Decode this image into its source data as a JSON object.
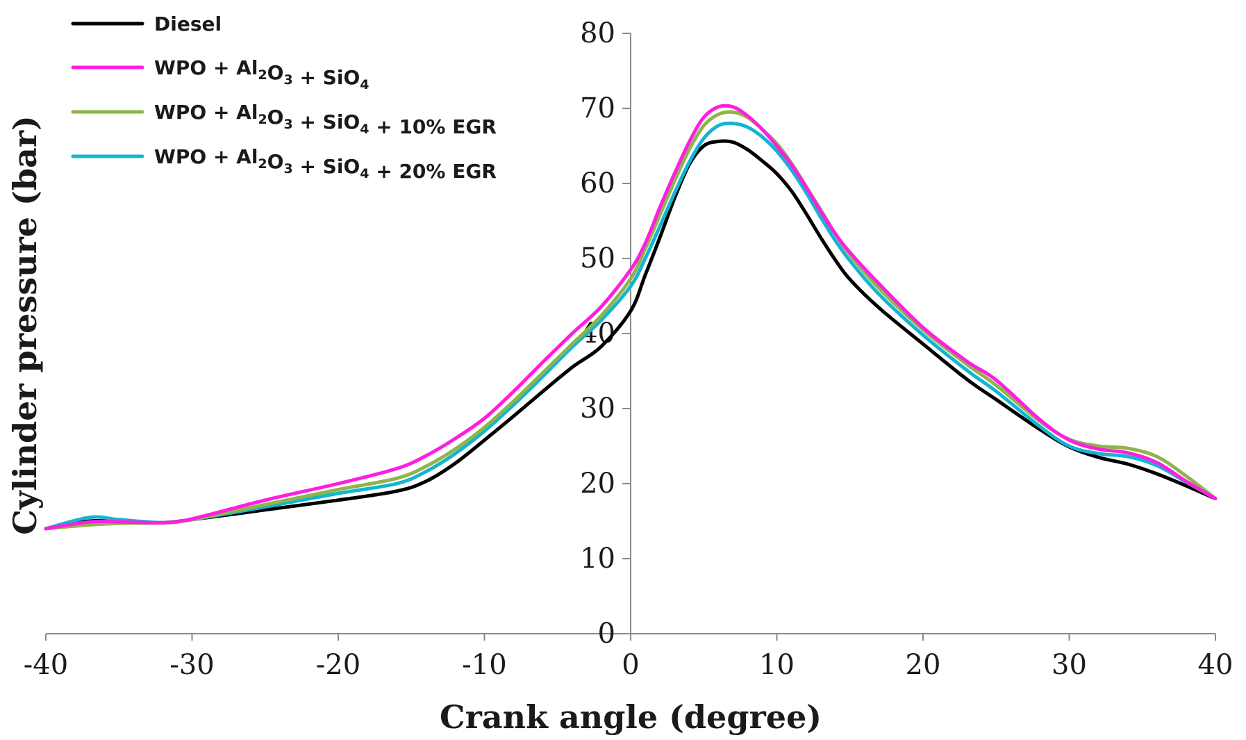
{
  "chart_data": {
    "type": "line",
    "title": "",
    "xlabel": "Crank angle (degree)",
    "ylabel": "Cylinder pressure (bar)",
    "xlim": [
      -40,
      40
    ],
    "ylim": [
      0,
      80
    ],
    "xticks": [
      -40,
      -30,
      -20,
      -10,
      0,
      10,
      20,
      30,
      40
    ],
    "yticks": [
      0,
      10,
      20,
      30,
      40,
      50,
      60,
      70,
      80
    ],
    "grid": false,
    "legend_position": "top-left",
    "series": [
      {
        "name": "Diesel",
        "label_parts": [
          {
            "t": "Diesel"
          }
        ],
        "color": "#000000",
        "x": [
          -40,
          -37,
          -35,
          -32,
          -30,
          -25,
          -20,
          -16,
          -14,
          -12,
          -10,
          -8,
          -6,
          -4,
          -2,
          0,
          1,
          2,
          3,
          4,
          5,
          6,
          7,
          8,
          9,
          10,
          11,
          12,
          13,
          14,
          15,
          17,
          20,
          23,
          25,
          28,
          30,
          32,
          34,
          36,
          38,
          40
        ],
        "y": [
          14,
          15,
          14.9,
          14.8,
          15.2,
          16.5,
          17.8,
          19,
          20.3,
          22.7,
          25.8,
          29,
          32.3,
          35.5,
          38.3,
          43,
          47.8,
          52.8,
          58,
          62.5,
          65,
          65.6,
          65.5,
          64.5,
          63,
          61.3,
          59,
          56,
          52.8,
          49.8,
          47.2,
          43.4,
          38.6,
          33.9,
          31.2,
          27.2,
          24.9,
          23.5,
          22.6,
          21.3,
          19.7,
          18
        ]
      },
      {
        "name": "WPO + Al2O3 + SiO4",
        "label_parts": [
          {
            "t": "WPO + Al"
          },
          {
            "t": "2",
            "sub": true
          },
          {
            "t": "O"
          },
          {
            "t": "3",
            "sub": true
          },
          {
            "t": " + SiO"
          },
          {
            "t": "4",
            "sub": true
          }
        ],
        "color": "#FF1EE0",
        "x": [
          -40,
          -37,
          -35,
          -32,
          -30,
          -25,
          -20,
          -16,
          -14,
          -12,
          -10,
          -8,
          -6,
          -4,
          -2,
          0,
          1,
          2,
          3,
          4,
          5,
          6,
          7,
          8,
          9,
          10,
          11,
          12,
          13,
          14,
          15,
          17,
          20,
          23,
          25,
          28,
          30,
          32,
          34,
          36,
          38,
          40
        ],
        "y": [
          14,
          14.9,
          14.9,
          14.8,
          15.3,
          17.8,
          20,
          22,
          23.7,
          26,
          28.7,
          32.3,
          36.2,
          40,
          43.6,
          48.5,
          52,
          56.8,
          61.3,
          65.5,
          68.8,
          70.2,
          70.2,
          69,
          67.2,
          65,
          62.5,
          59.5,
          56.3,
          53.3,
          50.8,
          46.6,
          40.8,
          36.3,
          33.8,
          28.5,
          25.8,
          24.6,
          24.1,
          22.8,
          20.3,
          18
        ]
      },
      {
        "name": "WPO + Al2O3 + SiO4 + 10% EGR",
        "label_parts": [
          {
            "t": "WPO + Al"
          },
          {
            "t": "2",
            "sub": true
          },
          {
            "t": "O"
          },
          {
            "t": "3",
            "sub": true
          },
          {
            "t": " + SiO"
          },
          {
            "t": "4",
            "sub": true
          },
          {
            "t": " + 10% EGR"
          }
        ],
        "color": "#8DB54A",
        "x": [
          -40,
          -37,
          -35,
          -32,
          -30,
          -25,
          -20,
          -16,
          -14,
          -12,
          -10,
          -8,
          -6,
          -4,
          -2,
          0,
          1,
          2,
          3,
          4,
          5,
          6,
          7,
          8,
          9,
          10,
          11,
          12,
          13,
          14,
          15,
          17,
          20,
          23,
          25,
          28,
          30,
          32,
          34,
          36,
          38,
          40
        ],
        "y": [
          14,
          14.5,
          14.7,
          14.8,
          15.2,
          17.2,
          19.2,
          20.7,
          22.3,
          24.6,
          27.5,
          31,
          34.8,
          38.6,
          42.4,
          47.3,
          51.3,
          55.8,
          60.3,
          64.5,
          67.7,
          69.2,
          69.5,
          68.8,
          67.2,
          65.3,
          62.7,
          59.6,
          56.5,
          53.3,
          50.5,
          46,
          40.5,
          35.9,
          33.1,
          28.3,
          25.9,
          25,
          24.7,
          23.6,
          21,
          18
        ]
      },
      {
        "name": "WPO + Al2O3 + SiO4 + 20% EGR",
        "label_parts": [
          {
            "t": "WPO + Al"
          },
          {
            "t": "2",
            "sub": true
          },
          {
            "t": "O"
          },
          {
            "t": "3",
            "sub": true
          },
          {
            "t": " + SiO"
          },
          {
            "t": "4",
            "sub": true
          },
          {
            "t": " + 20% EGR"
          }
        ],
        "color": "#13B5D1",
        "x": [
          -40,
          -37,
          -35,
          -32,
          -30,
          -25,
          -20,
          -16,
          -14,
          -12,
          -10,
          -8,
          -6,
          -4,
          -2,
          0,
          1,
          2,
          3,
          4,
          5,
          6,
          7,
          8,
          9,
          10,
          11,
          12,
          13,
          14,
          15,
          17,
          20,
          23,
          25,
          28,
          30,
          32,
          34,
          36,
          38,
          40
        ],
        "y": [
          14,
          15.5,
          15.2,
          14.8,
          15.2,
          16.9,
          18.7,
          20,
          21.6,
          24,
          27,
          30.5,
          34.3,
          38.2,
          41.8,
          46.3,
          50,
          54.3,
          58.7,
          62.8,
          66,
          67.7,
          68,
          67.5,
          66.2,
          64.3,
          61.8,
          58.8,
          55.5,
          52.4,
          49.7,
          45.2,
          39.8,
          35.1,
          32.3,
          27.6,
          25,
          24,
          23.6,
          22.4,
          20.2,
          18
        ]
      }
    ]
  }
}
